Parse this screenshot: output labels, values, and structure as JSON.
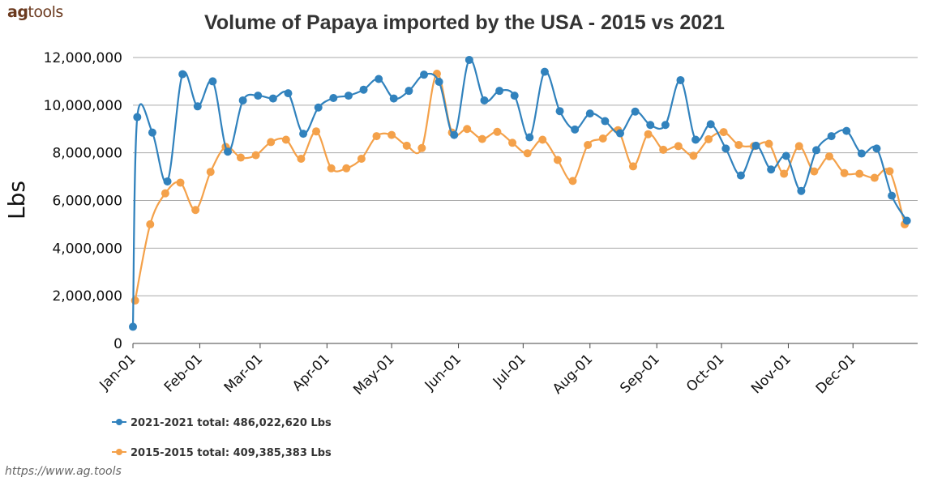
{
  "brand": {
    "bold": "ag",
    "light": "tools"
  },
  "footer_url": "https://www.ag.tools",
  "chart_data": {
    "type": "line",
    "title": "Volume of Papaya imported by the USA - 2015 vs 2021",
    "ylabel": "Lbs",
    "xlabel": "",
    "ylim": [
      0,
      12000000
    ],
    "y_ticks": [
      0,
      2000000,
      4000000,
      6000000,
      8000000,
      10000000,
      12000000
    ],
    "y_tick_labels": [
      "0",
      "2,000,000",
      "4,000,000",
      "6,000,000",
      "8,000,000",
      "10,000,000",
      "12,000,000"
    ],
    "x_domain": [
      "2021-01-01",
      "2021-12-31"
    ],
    "x_ticks": [
      "2021-01-01",
      "2021-02-01",
      "2021-03-01",
      "2021-04-01",
      "2021-05-01",
      "2021-06-01",
      "2021-07-01",
      "2021-08-01",
      "2021-09-01",
      "2021-10-01",
      "2021-11-01",
      "2021-12-01"
    ],
    "x_tick_labels": [
      "Jan-01",
      "Feb-01",
      "Mar-01",
      "Apr-01",
      "May-01",
      "Jun-01",
      "Jul-01",
      "Aug-01",
      "Sep-01",
      "Oct-01",
      "Nov-01",
      "Dec-01"
    ],
    "grid": "horizontal",
    "legend_position": "bottom-left",
    "series": [
      {
        "name": "2021-2021 total: 486,022,620 Lbs",
        "color": "#3182bd",
        "x": [
          "2021-01-01",
          "2021-01-03",
          "2021-01-10",
          "2021-01-17",
          "2021-01-24",
          "2021-01-31",
          "2021-02-07",
          "2021-02-14",
          "2021-02-21",
          "2021-02-28",
          "2021-03-07",
          "2021-03-14",
          "2021-03-21",
          "2021-03-28",
          "2021-04-04",
          "2021-04-11",
          "2021-04-18",
          "2021-04-25",
          "2021-05-02",
          "2021-05-09",
          "2021-05-16",
          "2021-05-23",
          "2021-05-30",
          "2021-06-06",
          "2021-06-13",
          "2021-06-20",
          "2021-06-27",
          "2021-07-04",
          "2021-07-11",
          "2021-07-18",
          "2021-07-25",
          "2021-08-01",
          "2021-08-08",
          "2021-08-15",
          "2021-08-22",
          "2021-08-29",
          "2021-09-05",
          "2021-09-12",
          "2021-09-19",
          "2021-09-26",
          "2021-10-03",
          "2021-10-10",
          "2021-10-17",
          "2021-10-24",
          "2021-10-31",
          "2021-11-07",
          "2021-11-14",
          "2021-11-21",
          "2021-11-28",
          "2021-12-05",
          "2021-12-12",
          "2021-12-19",
          "2021-12-26"
        ],
        "values": [
          700000,
          9500000,
          8850000,
          6800000,
          11300000,
          9950000,
          11000000,
          8050000,
          10200000,
          10400000,
          10280000,
          10500000,
          8800000,
          9900000,
          10300000,
          10400000,
          10650000,
          11100000,
          10280000,
          10600000,
          11280000,
          10980000,
          8750000,
          11900000,
          10200000,
          10600000,
          10400000,
          8650000,
          11400000,
          9750000,
          8980000,
          9650000,
          9330000,
          8820000,
          9730000,
          9170000,
          9170000,
          11050000,
          8550000,
          9200000,
          8180000,
          7050000,
          8300000,
          7300000,
          7870000,
          6400000,
          8110000,
          8700000,
          8920000,
          7970000,
          8180000,
          6200000,
          5150000
        ]
      },
      {
        "name": "2015-2015 total: 409,385,383 Lbs",
        "color": "#f4a14a",
        "x": [
          "2021-01-02",
          "2021-01-09",
          "2021-01-16",
          "2021-01-23",
          "2021-01-30",
          "2021-02-06",
          "2021-02-13",
          "2021-02-20",
          "2021-02-27",
          "2021-03-06",
          "2021-03-13",
          "2021-03-20",
          "2021-03-27",
          "2021-04-03",
          "2021-04-10",
          "2021-04-17",
          "2021-04-24",
          "2021-05-01",
          "2021-05-08",
          "2021-05-15",
          "2021-05-22",
          "2021-05-29",
          "2021-06-05",
          "2021-06-12",
          "2021-06-19",
          "2021-06-26",
          "2021-07-03",
          "2021-07-10",
          "2021-07-17",
          "2021-07-24",
          "2021-07-31",
          "2021-08-07",
          "2021-08-14",
          "2021-08-21",
          "2021-08-28",
          "2021-09-04",
          "2021-09-11",
          "2021-09-18",
          "2021-09-25",
          "2021-10-02",
          "2021-10-09",
          "2021-10-16",
          "2021-10-23",
          "2021-10-30",
          "2021-11-06",
          "2021-11-13",
          "2021-11-20",
          "2021-11-27",
          "2021-12-04",
          "2021-12-11",
          "2021-12-18",
          "2021-12-25"
        ],
        "values": [
          1800000,
          5000000,
          6300000,
          6750000,
          5600000,
          7200000,
          8250000,
          7800000,
          7900000,
          8450000,
          8550000,
          7750000,
          8900000,
          7350000,
          7350000,
          7750000,
          8700000,
          8750000,
          8300000,
          8200000,
          11320000,
          8850000,
          9000000,
          8580000,
          8880000,
          8420000,
          7980000,
          8550000,
          7700000,
          6820000,
          8330000,
          8600000,
          8950000,
          7430000,
          8780000,
          8130000,
          8280000,
          7880000,
          8570000,
          8870000,
          8330000,
          8280000,
          8380000,
          7120000,
          8280000,
          7220000,
          7850000,
          7150000,
          7120000,
          6950000,
          7230000,
          5000000
        ]
      }
    ]
  }
}
